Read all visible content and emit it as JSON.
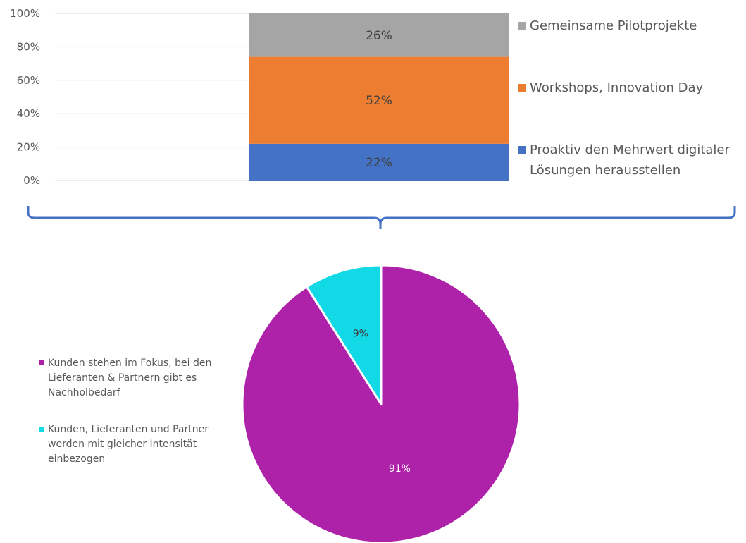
{
  "chart_data": [
    {
      "type": "bar",
      "stacked": true,
      "categories": [
        ""
      ],
      "ylim": [
        0,
        100
      ],
      "yticks": [
        "0%",
        "20%",
        "40%",
        "60%",
        "80%",
        "100%"
      ],
      "grid": true,
      "legend_position": "right",
      "series": [
        {
          "name": "Proaktiv den Mehrwert digitaler Lösungen herausstellen",
          "values": [
            22
          ],
          "label": "22%",
          "color": "#4472C4"
        },
        {
          "name": "Workshops, Innovation Day",
          "values": [
            52
          ],
          "label": "52%",
          "color": "#ED7D31"
        },
        {
          "name": "Gemeinsame Pilotprojekte",
          "values": [
            26
          ],
          "label": "26%",
          "color": "#A5A5A5"
        }
      ],
      "legend_lines": [
        [
          "Gemeinsame Pilotprojekte"
        ],
        [
          "Workshops, Innovation Day"
        ],
        [
          "Proaktiv den Mehrwert digitaler",
          "Lösungen herausstellen"
        ]
      ]
    },
    {
      "type": "pie",
      "legend_position": "left",
      "slices": [
        {
          "name": "Kunden stehen im Fokus, bei den Lieferanten & Partnern  gibt es Nachholbedarf",
          "value": 91,
          "label": "91%",
          "color": "#AD22A8",
          "label_color": "#ffffff"
        },
        {
          "name": "Kunden, Lieferanten und Partner werden mit gleicher Intensität einbezogen",
          "value": 9,
          "label": "9%",
          "color": "#12D9E6",
          "label_color": "#404040"
        }
      ],
      "legend_lines": [
        [
          "Kunden stehen im Fokus, bei den",
          "Lieferanten & Partnern  gibt es",
          "Nachholbedarf"
        ],
        [
          "Kunden, Lieferanten und Partner",
          "werden mit gleicher Intensität",
          "einbezogen"
        ]
      ]
    }
  ],
  "colors": {
    "bracket": "#4472C4",
    "grid": "#D9D9D9"
  }
}
